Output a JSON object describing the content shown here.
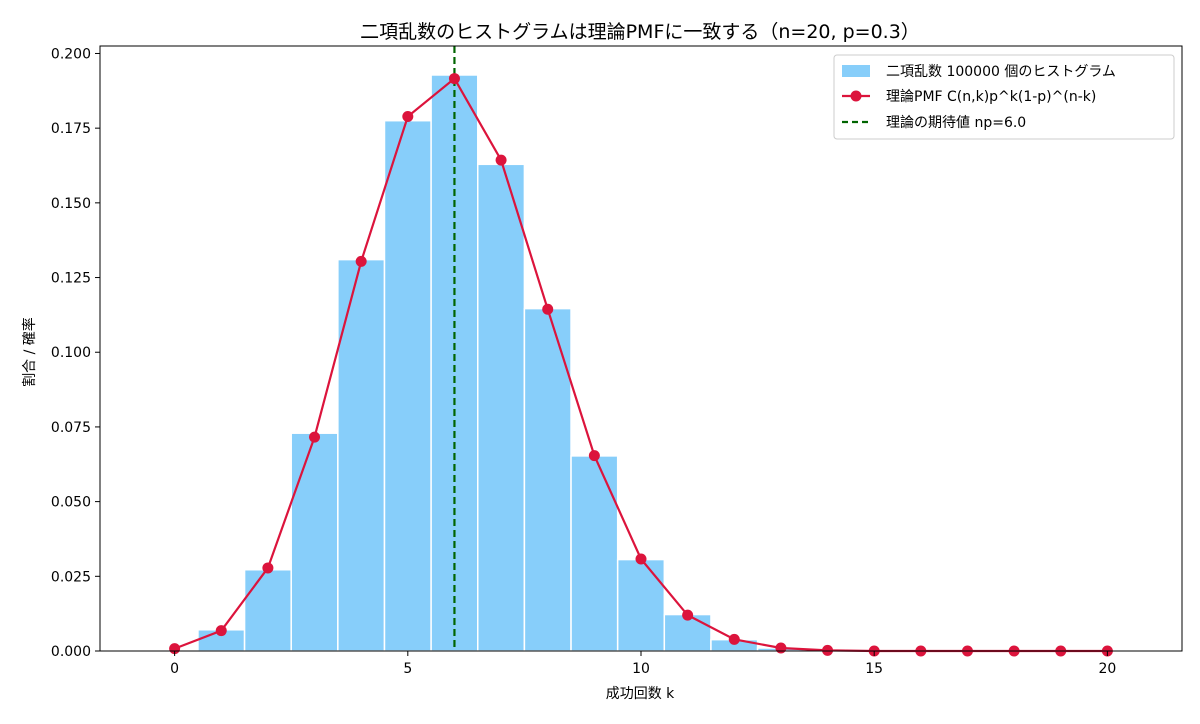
{
  "chart_data": {
    "type": "bar",
    "title": "二項乱数のヒストグラムは理論PMFに一致する（n=20, p=0.3）",
    "xlabel": "成功回数 k",
    "ylabel": "割合 / 確率",
    "xlim": [
      -1.6,
      21.6
    ],
    "ylim": [
      0,
      0.2025
    ],
    "xticks": [
      0,
      5,
      10,
      15,
      20
    ],
    "yticks": [
      0.0,
      0.025,
      0.05,
      0.075,
      0.1,
      0.125,
      0.15,
      0.175,
      0.2
    ],
    "xtick_labels": [
      "0",
      "5",
      "10",
      "15",
      "20"
    ],
    "ytick_labels": [
      "0.000",
      "0.025",
      "0.050",
      "0.075",
      "0.100",
      "0.125",
      "0.150",
      "0.175",
      "0.200"
    ],
    "grid": false,
    "legend_position": "top-right",
    "series": [
      {
        "name": "二項乱数 100000 個のヒストグラム",
        "kind": "histogram",
        "color": "#87CEFA",
        "edge_color": "#ffffff",
        "x": [
          1,
          2,
          3,
          4,
          5,
          6,
          7,
          8,
          9,
          10,
          11,
          12,
          13
        ],
        "values": [
          0.0071,
          0.0272,
          0.0729,
          0.131,
          0.1775,
          0.1928,
          0.1629,
          0.1146,
          0.0653,
          0.0306,
          0.0122,
          0.0038,
          0.001
        ]
      },
      {
        "name": "理論PMF C(n,k)p^k(1-p)^(n-k)",
        "kind": "line-markers",
        "color": "#DC143C",
        "x": [
          0,
          1,
          2,
          3,
          4,
          5,
          6,
          7,
          8,
          9,
          10,
          11,
          12,
          13,
          14,
          15,
          16,
          17,
          18,
          19,
          20
        ],
        "values": [
          0.0008,
          0.0068,
          0.0278,
          0.0716,
          0.1304,
          0.1789,
          0.1916,
          0.1643,
          0.1144,
          0.0654,
          0.0308,
          0.012,
          0.0039,
          0.001,
          0.0002,
          0.0,
          0.0,
          0.0,
          0.0,
          0.0,
          0.0
        ]
      },
      {
        "name": "理論の期待値 np=6.0",
        "kind": "vline",
        "color": "#006400",
        "x": 6.0
      }
    ]
  }
}
